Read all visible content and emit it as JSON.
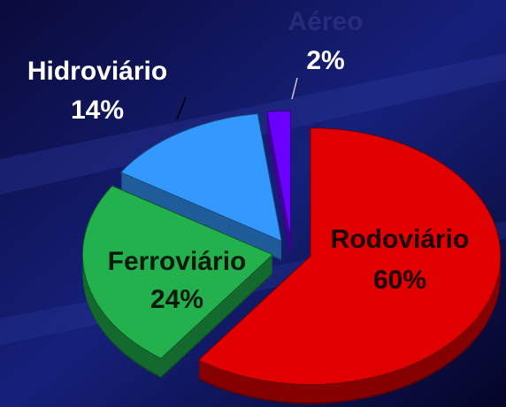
{
  "chart_data": {
    "type": "pie",
    "categories": [
      "Rodoviário",
      "Ferroviário",
      "Hidroviário",
      "Aéreo"
    ],
    "values": [
      60,
      24,
      14,
      2
    ],
    "value_labels": [
      "60%",
      "24%",
      "14%",
      "2%"
    ],
    "colors": [
      "#e00000",
      "#22b14c",
      "#3399ff",
      "#6a00ff"
    ]
  }
}
